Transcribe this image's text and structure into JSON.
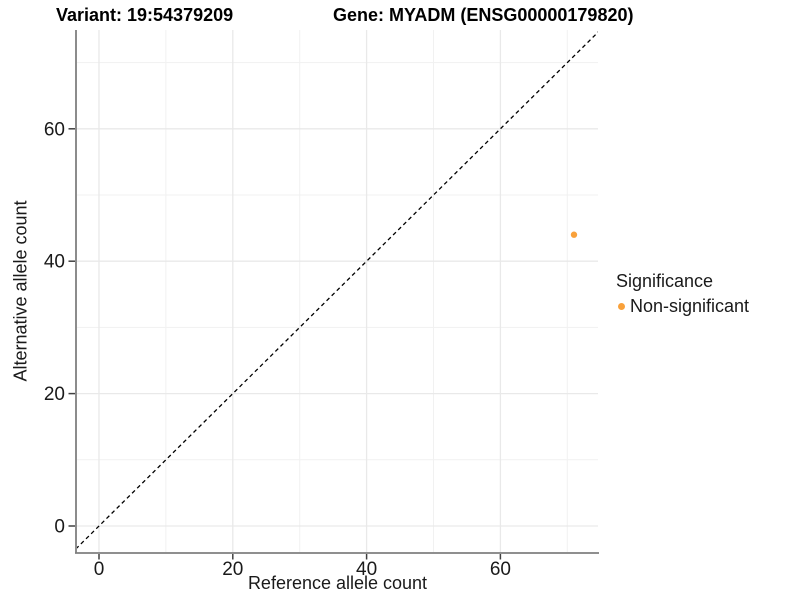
{
  "chart_data": {
    "type": "scatter",
    "title_left": "Variant: 19:54379209",
    "title_right": "Gene: MYADM (ENSG00000179820)",
    "xlabel": "Reference allele count",
    "ylabel": "Alternative allele count",
    "x_ticks": [
      0,
      20,
      40,
      60
    ],
    "y_ticks": [
      0,
      20,
      40,
      60
    ],
    "x_gridlines_minor": [
      10,
      30,
      50,
      70
    ],
    "y_gridlines_minor": [
      10,
      30,
      50,
      70
    ],
    "xlim": [
      -3.3,
      74.6
    ],
    "ylim": [
      -3.9,
      74.9
    ],
    "grid": true,
    "reference_line": {
      "type": "identity",
      "style": "dashed",
      "color": "#000000"
    },
    "points": [
      {
        "x": 71,
        "y": 44,
        "significance": "Non-significant",
        "color": "#F9A13B"
      }
    ],
    "legend": {
      "position": "right",
      "title": "Significance",
      "items": [
        {
          "label": "Non-significant",
          "color": "#F9A13B"
        }
      ]
    },
    "colors": {
      "grid_major": "#E9E9E9",
      "grid_minor": "#F1F1F1",
      "axis_line": "#7F7F7F",
      "tick_mark": "#404040",
      "tick_label": "#1A1A1A"
    }
  }
}
